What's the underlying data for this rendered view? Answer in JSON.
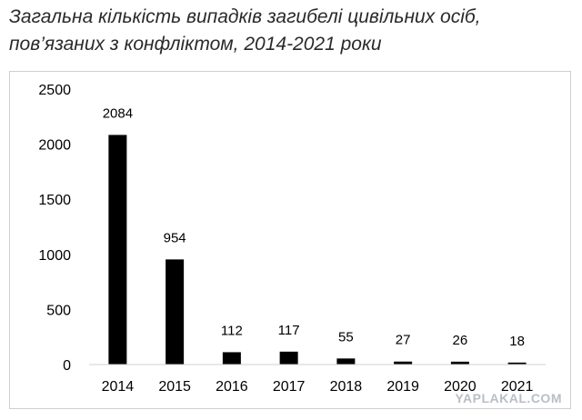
{
  "watermark": "YAPLAKAL.COM",
  "chart_data": {
    "type": "bar",
    "title_lines": [
      "Загальна кількість випадків загибелі цивільних осіб,",
      "пов’язаних з конфліктом, 2014-2021 роки"
    ],
    "categories": [
      "2014",
      "2015",
      "2016",
      "2017",
      "2018",
      "2019",
      "2020",
      "2021"
    ],
    "values": [
      2084,
      954,
      112,
      117,
      55,
      27,
      26,
      18
    ],
    "data_labels": [
      "2084",
      "954",
      "112",
      "117",
      "55",
      "27",
      "26",
      "18"
    ],
    "y_ticks": [
      0,
      500,
      1000,
      1500,
      2000,
      2500
    ],
    "ylim": [
      0,
      2500
    ],
    "xlabel": "",
    "ylabel": "",
    "grid": false,
    "bar_color": "#000000",
    "legend": "none"
  }
}
